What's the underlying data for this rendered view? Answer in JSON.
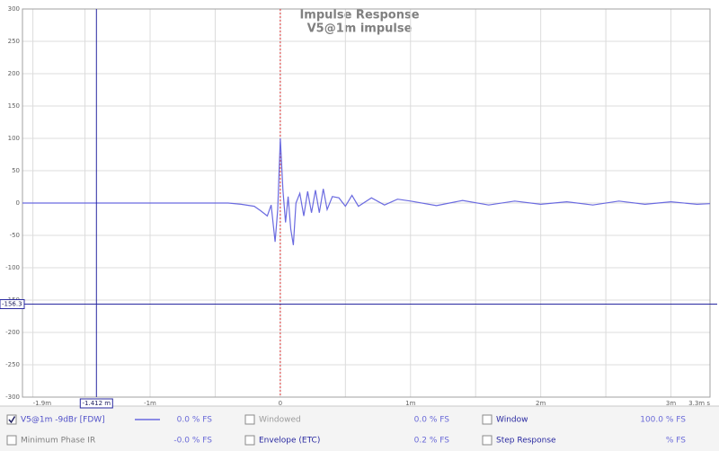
{
  "chart_data": {
    "type": "line",
    "title": "Impulse Response",
    "subtitle": "V5@1m impulse",
    "xlim": [
      -1.98,
      3.3
    ],
    "ylim": [
      -300,
      300
    ],
    "xticks": [
      {
        "value": -1.9,
        "label": "-1.9m"
      },
      {
        "value": -1,
        "label": "-1m"
      },
      0,
      {
        "value": 1,
        "label": "1m"
      },
      {
        "value": 2,
        "label": "2m"
      },
      {
        "value": 3,
        "label": "3m"
      },
      {
        "value": 3.3,
        "label": "3.3m s"
      }
    ],
    "xminor": [
      -1.5,
      -0.5,
      0.5,
      1.5,
      2.5
    ],
    "yticks": [
      300,
      250,
      200,
      150,
      100,
      50,
      0,
      -50,
      -100,
      -150,
      -200,
      -250,
      -300
    ],
    "grid": true,
    "cursor": {
      "x": -1.412,
      "x_label": "-1.412 m",
      "y": -156.3,
      "color": "#2828a0"
    },
    "marker": {
      "x": 0,
      "color": "#e03030"
    },
    "series": [
      {
        "name": "V5@1m -9dBr [FDW]",
        "color": "#6a6ae0",
        "readout": "0.0 % FS",
        "checked": true,
        "x": [
          -1.98,
          -0.4,
          -0.3,
          -0.2,
          -0.15,
          -0.1,
          -0.07,
          -0.04,
          -0.02,
          0,
          0.02,
          0.04,
          0.06,
          0.08,
          0.1,
          0.12,
          0.15,
          0.18,
          0.21,
          0.24,
          0.27,
          0.3,
          0.33,
          0.36,
          0.4,
          0.45,
          0.5,
          0.55,
          0.6,
          0.7,
          0.8,
          0.9,
          1.0,
          1.2,
          1.4,
          1.6,
          1.8,
          2.0,
          2.2,
          2.4,
          2.6,
          2.8,
          3.0,
          3.2,
          3.3
        ],
        "values": [
          0,
          0,
          -2,
          -5,
          -12,
          -20,
          -3,
          -60,
          -10,
          100,
          20,
          -30,
          10,
          -40,
          -65,
          0,
          15,
          -20,
          18,
          -15,
          20,
          -15,
          22,
          -10,
          10,
          8,
          -5,
          12,
          -5,
          8,
          -3,
          6,
          3,
          -4,
          4,
          -3,
          3,
          -2,
          2,
          -3,
          3,
          -2,
          2,
          -2,
          -1
        ]
      }
    ]
  },
  "traces": [
    {
      "name": "Windowed",
      "readout": "0.0 % FS",
      "checked": false,
      "color": "#9a9a9a",
      "col": 1,
      "row": 0
    },
    {
      "name": "Window",
      "readout": "100.0 % FS",
      "checked": false,
      "color": "#2828a0",
      "col": 2,
      "row": 0
    },
    {
      "name": "Minimum Phase IR",
      "readout": "-0.0 % FS",
      "checked": false,
      "color": "#808080",
      "col": 0,
      "row": 1
    },
    {
      "name": "Envelope (ETC)",
      "readout": "0.2 % FS",
      "checked": false,
      "color": "#2828a0",
      "col": 1,
      "row": 1
    },
    {
      "name": "Step Response",
      "readout": "% FS",
      "checked": false,
      "color": "#2828a0",
      "col": 2,
      "row": 1
    }
  ]
}
